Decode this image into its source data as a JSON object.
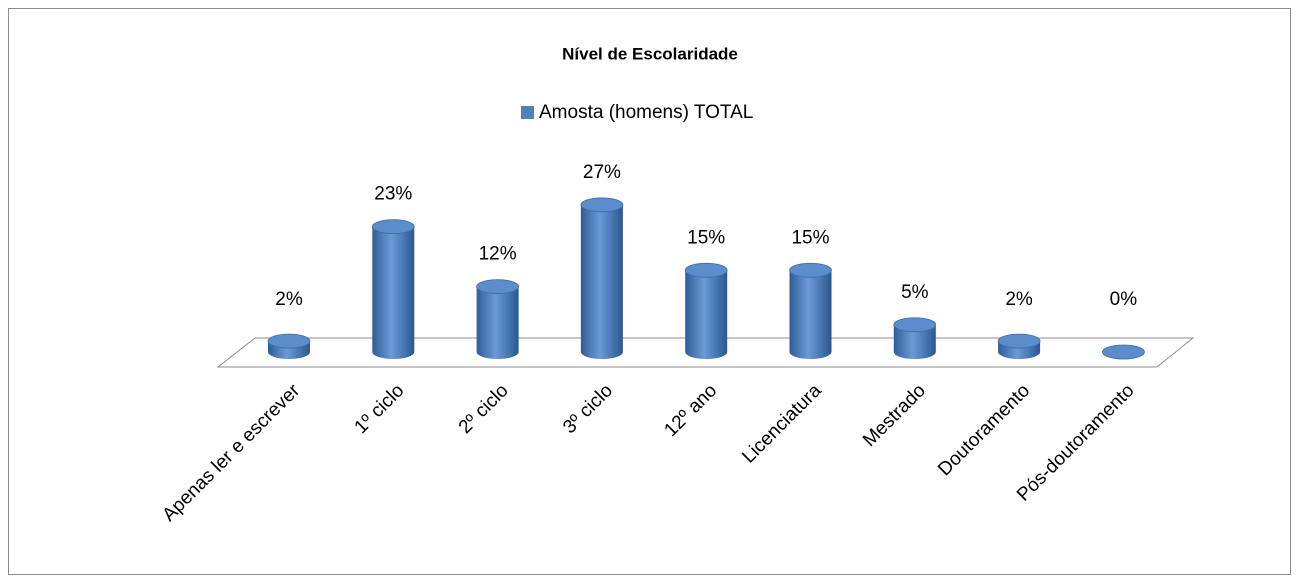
{
  "chart_data": {
    "type": "bar3d",
    "title": "Nível de Escolaridade",
    "categories": [
      "Apenas ler e escrever",
      "1º ciclo",
      "2º ciclo",
      "3º ciclo",
      "12º ano",
      "Licenciatura",
      "Mestrado",
      "Doutoramento",
      "Pós-doutoramento"
    ],
    "series": [
      {
        "name": "Amosta (homens) TOTAL",
        "color": "#4f81bd",
        "values": [
          2,
          23,
          12,
          27,
          15,
          15,
          5,
          2,
          0
        ],
        "value_labels": [
          "2%",
          "23%",
          "12%",
          "27%",
          "15%",
          "15%",
          "5%",
          "2%",
          "0%"
        ]
      }
    ],
    "legend": "top"
  }
}
